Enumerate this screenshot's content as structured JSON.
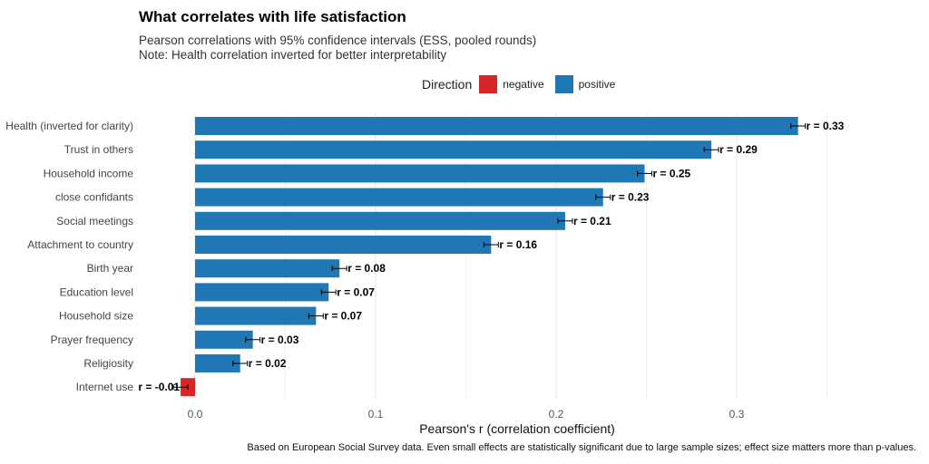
{
  "chart_data": {
    "type": "bar",
    "orientation": "horizontal",
    "title": "What correlates with life satisfaction",
    "subtitle": [
      "Pearson correlations with 95% confidence intervals (ESS, pooled rounds)",
      "Note: Health correlation inverted for better interpretability"
    ],
    "xlabel": "Pearson's r (correlation coefficient)",
    "ylabel": "",
    "xlim": [
      -0.015,
      0.35
    ],
    "xticks": [
      0.0,
      0.1,
      0.2,
      0.3
    ],
    "xtick_labels": [
      "0.0",
      "0.1",
      "0.2",
      "0.3"
    ],
    "grid": true,
    "legend": {
      "title": "Direction",
      "placement": "top",
      "entries": [
        {
          "label": "negative",
          "color": "#d62728"
        },
        {
          "label": "positive",
          "color": "#1f77b4"
        }
      ]
    },
    "categories": [
      "Health (inverted for clarity)",
      "Trust in others",
      "Household income",
      "close confidants",
      "Social meetings",
      "Attachment to country",
      "Birth year",
      "Education level",
      "Household size",
      "Prayer frequency",
      "Religiosity",
      "Internet use"
    ],
    "values": [
      0.334,
      0.286,
      0.249,
      0.226,
      0.205,
      0.164,
      0.08,
      0.074,
      0.067,
      0.032,
      0.025,
      -0.008
    ],
    "ci_low": [
      0.33,
      0.282,
      0.245,
      0.222,
      0.201,
      0.16,
      0.076,
      0.07,
      0.063,
      0.028,
      0.021,
      -0.012
    ],
    "ci_high": [
      0.338,
      0.29,
      0.253,
      0.23,
      0.209,
      0.168,
      0.084,
      0.078,
      0.071,
      0.036,
      0.029,
      -0.004
    ],
    "labels": [
      "r = 0.33",
      "r = 0.29",
      "r = 0.25",
      "r = 0.23",
      "r = 0.21",
      "r = 0.16",
      "r = 0.08",
      "r = 0.07",
      "r = 0.07",
      "r = 0.03",
      "r = 0.02",
      "r = -0.01"
    ],
    "direction": [
      "positive",
      "positive",
      "positive",
      "positive",
      "positive",
      "positive",
      "positive",
      "positive",
      "positive",
      "positive",
      "positive",
      "negative"
    ],
    "caption": "Based on European Social Survey data. Even small effects are statistically significant due to large sample sizes; effect size matters more than p-values."
  }
}
